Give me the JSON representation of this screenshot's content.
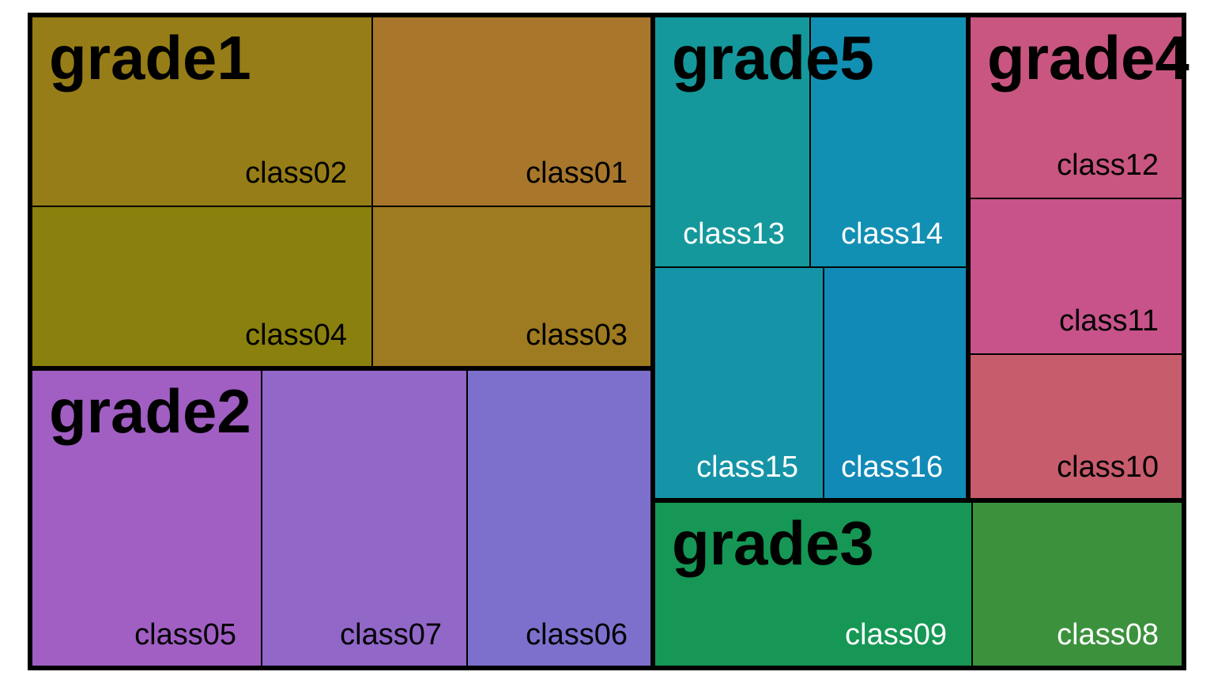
{
  "chart_data": {
    "type": "treemap",
    "groups": [
      {
        "name": "grade1",
        "children": [
          {
            "name": "class02",
            "color": "#967d17",
            "label_color": "#000000"
          },
          {
            "name": "class01",
            "color": "#a8772c",
            "label_color": "#000000"
          },
          {
            "name": "class04",
            "color": "#8a800e",
            "label_color": "#000000"
          },
          {
            "name": "class03",
            "color": "#9e7a20",
            "label_color": "#000000"
          }
        ]
      },
      {
        "name": "grade2",
        "children": [
          {
            "name": "class05",
            "color": "#a15fc3",
            "label_color": "#000000"
          },
          {
            "name": "class07",
            "color": "#9167c8",
            "label_color": "#000000"
          },
          {
            "name": "class06",
            "color": "#7d70cc",
            "label_color": "#000000"
          }
        ]
      },
      {
        "name": "grade5",
        "children": [
          {
            "name": "class13",
            "color": "#15989c",
            "label_color": "#ffffff"
          },
          {
            "name": "class14",
            "color": "#1290b3",
            "label_color": "#ffffff"
          },
          {
            "name": "class15",
            "color": "#1594a8",
            "label_color": "#ffffff"
          },
          {
            "name": "class16",
            "color": "#118ab8",
            "label_color": "#ffffff"
          }
        ]
      },
      {
        "name": "grade4",
        "children": [
          {
            "name": "class12",
            "color": "#c95680",
            "label_color": "#000000"
          },
          {
            "name": "class11",
            "color": "#c7538a",
            "label_color": "#000000"
          },
          {
            "name": "class10",
            "color": "#c75c6c",
            "label_color": "#000000"
          }
        ]
      },
      {
        "name": "grade3",
        "children": [
          {
            "name": "class09",
            "color": "#169755",
            "label_color": "#ffffff"
          },
          {
            "name": "class08",
            "color": "#3c913d",
            "label_color": "#ffffff"
          }
        ]
      }
    ]
  }
}
